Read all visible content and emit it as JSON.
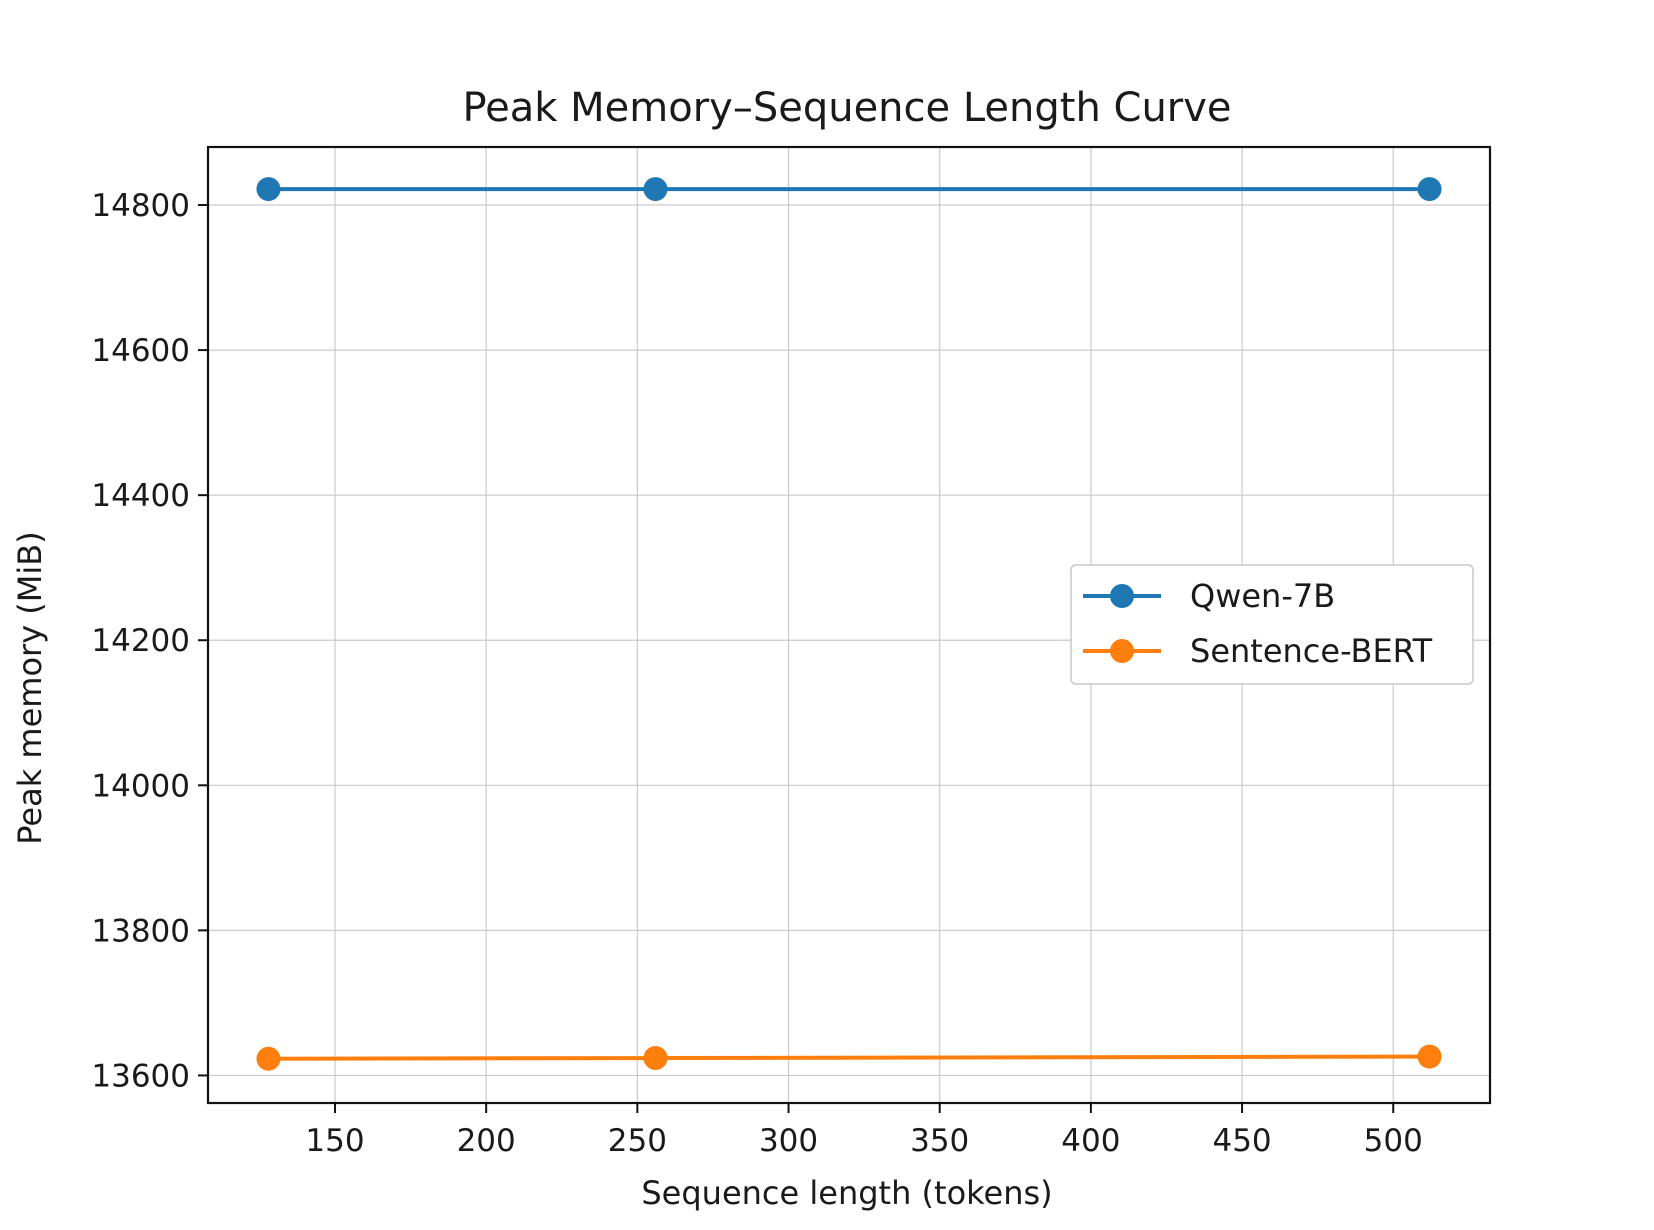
{
  "chart_data": {
    "type": "line",
    "title": "Peak Memory–Sequence Length Curve",
    "xlabel": "Sequence length (tokens)",
    "ylabel": "Peak memory  (MiB)",
    "xlim": [
      108,
      532
    ],
    "ylim": [
      13562,
      14880
    ],
    "xticks": [
      150,
      200,
      250,
      300,
      350,
      400,
      450,
      500
    ],
    "yticks": [
      13600,
      13800,
      14000,
      14200,
      14400,
      14600,
      14800
    ],
    "grid": true,
    "legend_position": "center-right",
    "series": [
      {
        "name": "Qwen-7B",
        "color": "#1f77b4",
        "marker": "circle",
        "x": [
          128,
          256,
          512
        ],
        "y": [
          14822,
          14822,
          14822
        ]
      },
      {
        "name": "Sentence-BERT",
        "color": "#ff7f0e",
        "marker": "circle",
        "x": [
          128,
          256,
          512
        ],
        "y": [
          13623,
          13624,
          13626
        ]
      }
    ]
  }
}
